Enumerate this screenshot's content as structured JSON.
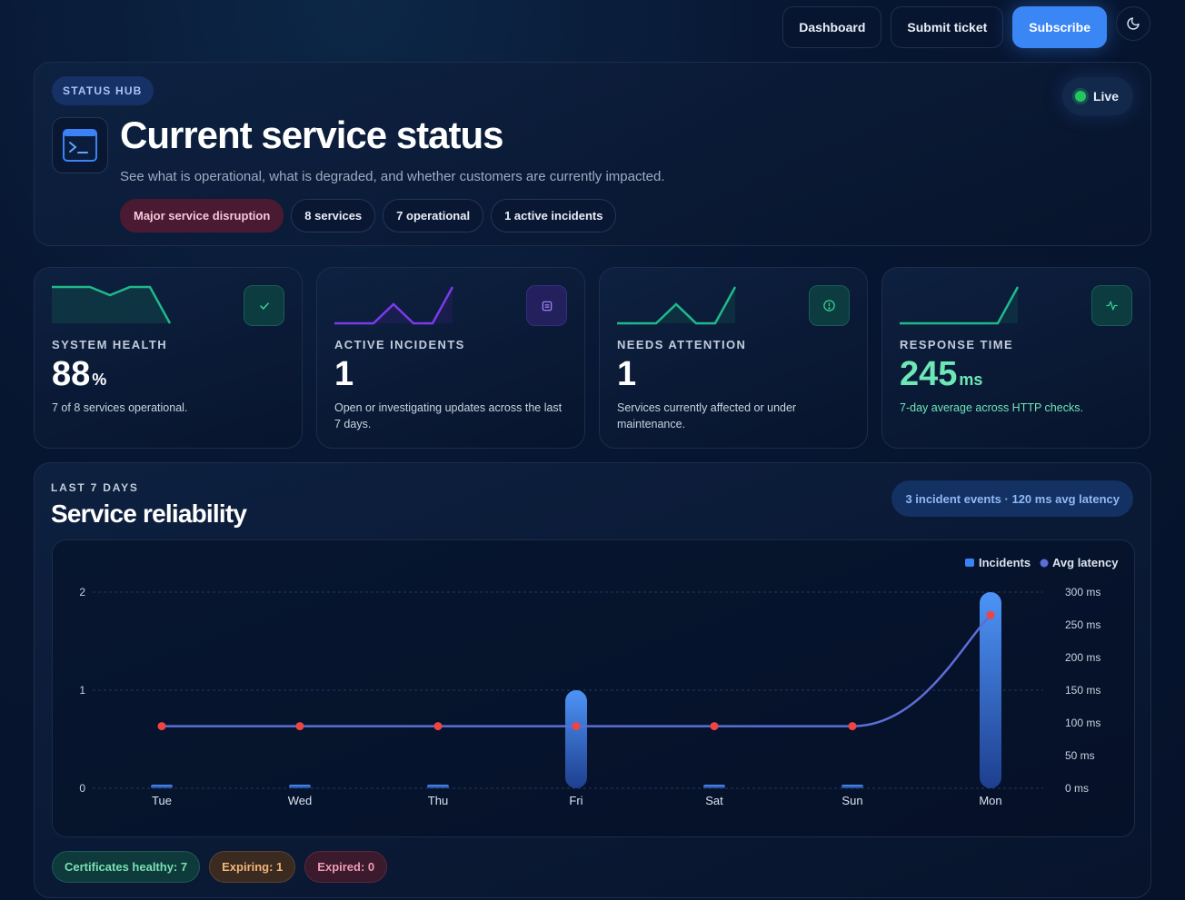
{
  "topbar": {
    "dashboard_label": "Dashboard",
    "submit_ticket_label": "Submit ticket",
    "subscribe_label": "Subscribe",
    "theme_toggle_icon": "moon-icon"
  },
  "hero": {
    "kicker": "STATUS HUB",
    "title": "Current service status",
    "subtitle": "See what is operational, what is degraded, and whether customers are currently impacted.",
    "live_label": "Live",
    "chips": {
      "disruption": "Major service disruption",
      "services": "8 services",
      "operational": "7 operational",
      "incidents": "1 active incidents"
    }
  },
  "stats": [
    {
      "label": "SYSTEM HEALTH",
      "value": "88",
      "unit": "%",
      "desc": "7 of 8 services operational.",
      "icon": "check-icon",
      "color": "#1fb98a"
    },
    {
      "label": "ACTIVE INCIDENTS",
      "value": "1",
      "unit": "",
      "desc": "Open or investigating updates across the last 7 days.",
      "icon": "list-icon",
      "color": "#7c3aed"
    },
    {
      "label": "NEEDS ATTENTION",
      "value": "1",
      "unit": "",
      "desc": "Services currently affected or under maintenance.",
      "icon": "alert-icon",
      "color": "#1fb98a"
    },
    {
      "label": "RESPONSE TIME",
      "value": "245",
      "unit": "ms",
      "desc": "7-day average across HTTP checks.",
      "icon": "pulse-icon",
      "color": "#1fb98a"
    }
  ],
  "reliability": {
    "kicker": "LAST 7 DAYS",
    "title": "Service reliability",
    "summary": "3 incident events · 120 ms avg latency"
  },
  "chart_data": {
    "type": "bar",
    "categories": [
      "Tue",
      "Wed",
      "Thu",
      "Fri",
      "Sat",
      "Sun",
      "Mon"
    ],
    "series": [
      {
        "name": "Incidents",
        "type": "bar",
        "axis": "left",
        "values": [
          0,
          0,
          0,
          1,
          0,
          0,
          2
        ],
        "color": "#3b82f6"
      },
      {
        "name": "Avg latency",
        "type": "line",
        "axis": "right",
        "values": [
          95,
          95,
          95,
          95,
          95,
          95,
          265
        ],
        "color": "#5b6fd6"
      }
    ],
    "ylim_left": [
      0,
      2
    ],
    "yticks_left": [
      0,
      1,
      2
    ],
    "ylim_right": [
      0,
      300
    ],
    "yticks_right": [
      "0 ms",
      "50 ms",
      "100 ms",
      "150 ms",
      "200 ms",
      "250 ms",
      "300 ms"
    ],
    "legend": [
      "Incidents",
      "Avg latency"
    ],
    "legend_position": "top-right",
    "grid": true
  },
  "certificates": {
    "healthy": "Certificates healthy: 7",
    "expiring": "Expiring: 1",
    "expired": "Expired: 0"
  }
}
